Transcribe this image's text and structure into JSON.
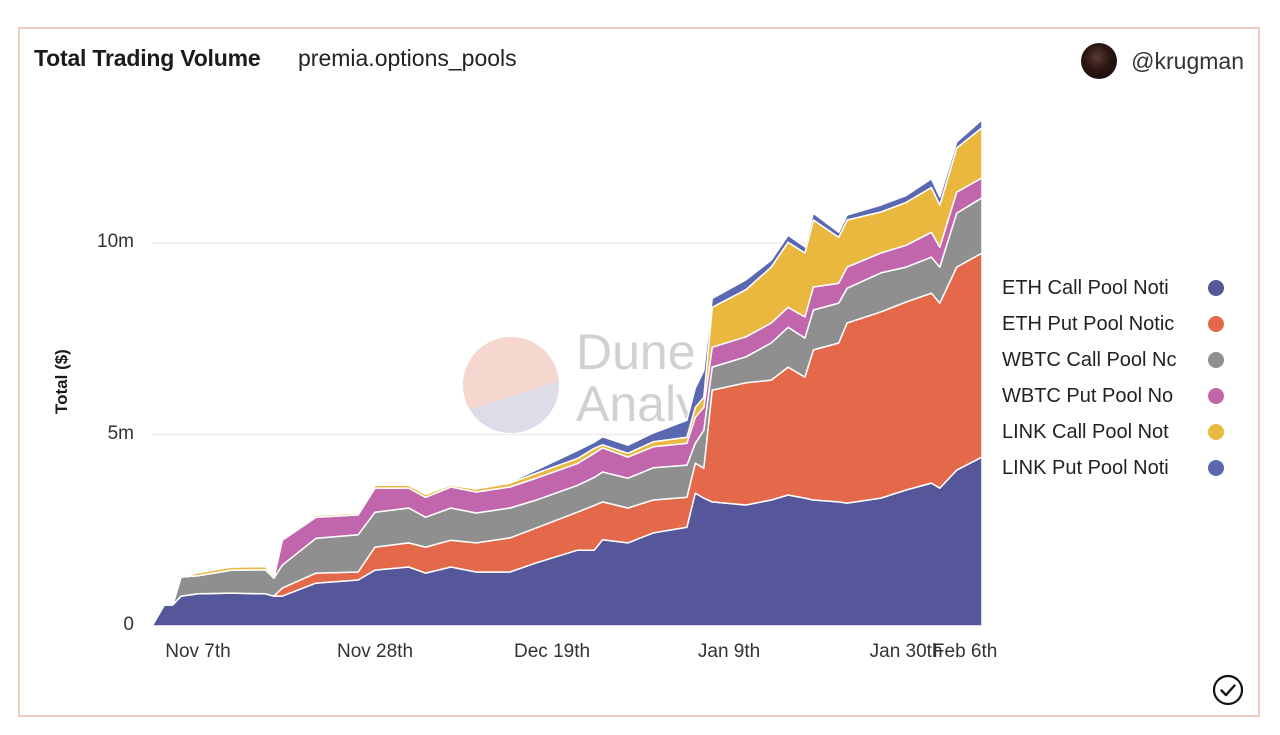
{
  "header": {
    "title": "Total Trading Volume",
    "subtitle": "premia.options_pools",
    "username": "@krugman"
  },
  "watermark": {
    "line1": "Dune",
    "line2": "Analytics"
  },
  "chart_data": {
    "type": "area",
    "stacked": true,
    "title": "Total Trading Volume",
    "xlabel": "",
    "ylabel": "Total ($)",
    "ylim": [
      0,
      13.73
    ],
    "y_unit": "millions USD",
    "yticks": [
      {
        "value": 0,
        "label": "0"
      },
      {
        "value": 5,
        "label": "5m"
      },
      {
        "value": 10,
        "label": "10m"
      }
    ],
    "xticks": [
      {
        "value": "Nov 7",
        "label": "Nov 7th"
      },
      {
        "value": "Nov 28",
        "label": "Nov 28th"
      },
      {
        "value": "Dec 19",
        "label": "Dec 19th"
      },
      {
        "value": "Jan 9",
        "label": "Jan 9th"
      },
      {
        "value": "Jan 30",
        "label": "Jan 30th"
      },
      {
        "value": "Feb 6",
        "label": "Feb 6th"
      }
    ],
    "legend_position": "right",
    "grid": true,
    "x": [
      "Nov 1",
      "Nov 3",
      "Nov 4",
      "Nov 5",
      "Nov 7",
      "Nov 11",
      "Nov 15",
      "Nov 16",
      "Nov 17",
      "Nov 21",
      "Nov 26",
      "Nov 28",
      "Dec 2",
      "Dec 4",
      "Dec 7",
      "Dec 10",
      "Dec 14",
      "Dec 17",
      "Dec 22",
      "Dec 24",
      "Dec 25",
      "Dec 28",
      "Dec 31",
      "Jan 4",
      "Jan 5",
      "Jan 6",
      "Jan 7",
      "Jan 11",
      "Jan 14",
      "Jan 16",
      "Jan 18",
      "Jan 19",
      "Jan 22",
      "Jan 23",
      "Jan 27",
      "Jan 30",
      "Feb 2",
      "Feb 3",
      "Feb 5",
      "Feb 8"
    ],
    "series": [
      {
        "name": "ETH Call Pool Noti",
        "color": "#56569a",
        "values": [
          0,
          0.55,
          0.55,
          0.78,
          0.84,
          0.86,
          0.84,
          0.78,
          0.78,
          1.12,
          1.2,
          1.46,
          1.54,
          1.38,
          1.54,
          1.41,
          1.41,
          1.64,
          1.98,
          1.98,
          2.25,
          2.17,
          2.43,
          2.58,
          3.47,
          3.34,
          3.24,
          3.16,
          3.29,
          3.42,
          3.34,
          3.29,
          3.24,
          3.21,
          3.34,
          3.55,
          3.73,
          3.6,
          4.07,
          4.41
        ]
      },
      {
        "name": "ETH Put Pool Notic",
        "color": "#e4694a",
        "values": [
          0,
          0,
          0,
          0,
          0,
          0,
          0,
          0,
          0.21,
          0.26,
          0.21,
          0.6,
          0.63,
          0.68,
          0.7,
          0.76,
          0.89,
          0.91,
          0.99,
          1.17,
          0.99,
          0.91,
          0.86,
          0.78,
          0.78,
          0.78,
          2.92,
          3.19,
          3.13,
          3.34,
          3.16,
          3.92,
          4.15,
          4.7,
          4.86,
          4.91,
          4.96,
          4.83,
          5.3,
          5.33
        ]
      },
      {
        "name": "WBTC Call Pool Nc",
        "color": "#8f8f8f",
        "values": [
          0,
          0,
          0,
          0.5,
          0.47,
          0.6,
          0.63,
          0.47,
          0.6,
          0.91,
          0.97,
          0.91,
          0.91,
          0.78,
          0.84,
          0.78,
          0.78,
          0.73,
          0.7,
          0.73,
          0.78,
          0.78,
          0.84,
          0.84,
          0.52,
          0.99,
          0.6,
          0.68,
          0.97,
          1.04,
          1.02,
          1.04,
          1.04,
          0.91,
          1.02,
          0.91,
          0.94,
          0.94,
          1.41,
          1.44
        ]
      },
      {
        "name": "WBTC Put Pool No",
        "color": "#c166ad",
        "values": [
          0,
          0,
          0,
          0,
          0,
          0,
          0,
          0,
          0.65,
          0.55,
          0.52,
          0.63,
          0.52,
          0.52,
          0.55,
          0.55,
          0.55,
          0.57,
          0.57,
          0.63,
          0.63,
          0.55,
          0.55,
          0.57,
          0.68,
          0.6,
          0.52,
          0.52,
          0.52,
          0.52,
          0.55,
          0.6,
          0.52,
          0.55,
          0.52,
          0.57,
          0.65,
          0.52,
          0.55,
          0.52
        ]
      },
      {
        "name": "LINK Call Pool Not",
        "color": "#ebb83f",
        "values": [
          0,
          0,
          0,
          0,
          0.08,
          0.08,
          0.08,
          0.05,
          0.05,
          0.05,
          0.05,
          0.08,
          0.08,
          0.08,
          0.05,
          0.08,
          0.1,
          0.13,
          0.13,
          0.13,
          0.08,
          0.1,
          0.13,
          0.16,
          0.26,
          0.26,
          1.04,
          1.23,
          1.46,
          1.7,
          1.67,
          1.75,
          1.2,
          1.23,
          1.07,
          1.12,
          1.17,
          1.1,
          1.15,
          1.31
        ]
      },
      {
        "name": "LINK Put Pool Noti",
        "color": "#5a67b1",
        "values": [
          0,
          0,
          0,
          0,
          0,
          0,
          0,
          0,
          0,
          0,
          0,
          0,
          0,
          0,
          0,
          0,
          0.03,
          0.08,
          0.21,
          0.16,
          0.21,
          0.21,
          0.23,
          0.44,
          0.5,
          0.7,
          0.23,
          0.26,
          0.18,
          0.18,
          0.16,
          0.18,
          0.13,
          0.13,
          0.18,
          0.18,
          0.23,
          0.21,
          0.16,
          0.21
        ]
      }
    ]
  },
  "icons": {
    "verified": "check-circle-icon",
    "avatar": "user-avatar"
  }
}
